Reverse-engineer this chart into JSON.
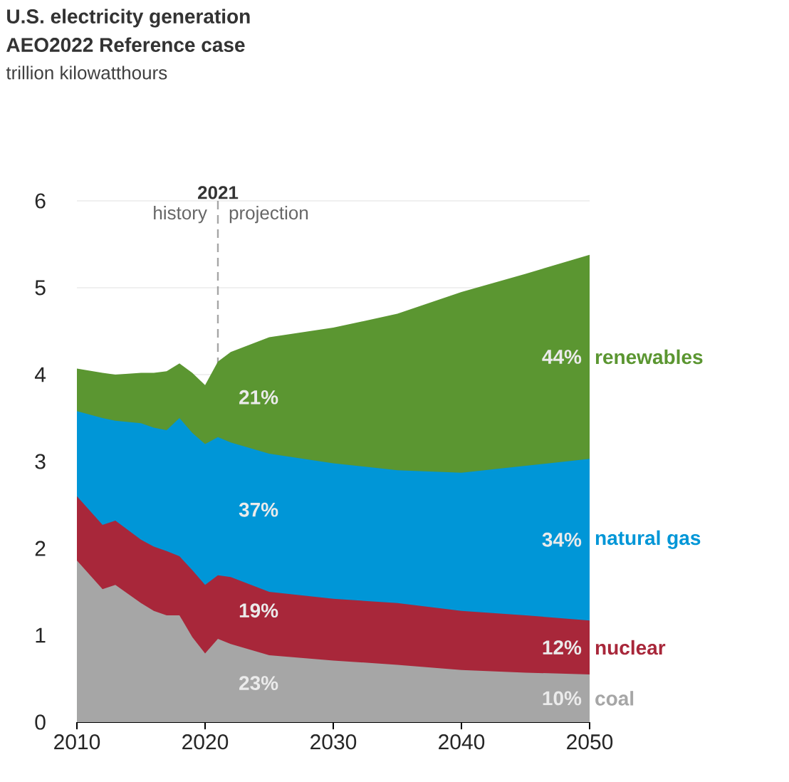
{
  "chart_data": {
    "type": "area",
    "stacked": true,
    "title": "U.S. electricity generation",
    "subtitle": "AEO2022 Reference case",
    "x": [
      2010,
      2012,
      2013,
      2015,
      2016,
      2017,
      2018,
      2019,
      2020,
      2021,
      2022,
      2025,
      2030,
      2035,
      2040,
      2045,
      2050
    ],
    "series": [
      {
        "name": "coal",
        "color": "#a6a6a6",
        "values": [
          1.86,
          1.53,
          1.58,
          1.37,
          1.28,
          1.23,
          1.23,
          0.98,
          0.79,
          0.96,
          0.9,
          0.77,
          0.71,
          0.66,
          0.6,
          0.57,
          0.55
        ]
      },
      {
        "name": "nuclear",
        "color": "#a8273a",
        "values": [
          0.74,
          0.74,
          0.74,
          0.73,
          0.74,
          0.74,
          0.68,
          0.77,
          0.79,
          0.73,
          0.77,
          0.73,
          0.71,
          0.71,
          0.68,
          0.66,
          0.62
        ]
      },
      {
        "name": "natural gas",
        "color": "#0096d7",
        "values": [
          0.98,
          1.23,
          1.15,
          1.34,
          1.37,
          1.39,
          1.59,
          1.58,
          1.62,
          1.59,
          1.55,
          1.59,
          1.56,
          1.53,
          1.59,
          1.72,
          1.86
        ]
      },
      {
        "name": "renewables",
        "color": "#5b9631",
        "values": [
          0.49,
          0.52,
          0.53,
          0.58,
          0.63,
          0.68,
          0.63,
          0.69,
          0.68,
          0.87,
          1.04,
          1.34,
          1.56,
          1.8,
          2.08,
          2.21,
          2.35
        ]
      }
    ],
    "xlim": [
      2010,
      2050
    ],
    "xticks": [
      2010,
      2020,
      2030,
      2040,
      2050
    ],
    "ylim": [
      0,
      6
    ],
    "yticks": [
      0,
      1,
      2,
      3,
      4,
      5,
      6
    ],
    "grid": "y",
    "ref_lines": [
      {
        "axis": "x",
        "value": 2021,
        "label": "2021",
        "color": "#a6a6a6",
        "line_style": "dashed"
      }
    ],
    "annotations": [
      "trillion kilowatthours",
      "history",
      "projection",
      "23%",
      "10%",
      "19%",
      "12%",
      "37%",
      "34%",
      "21%",
      "44%"
    ]
  }
}
